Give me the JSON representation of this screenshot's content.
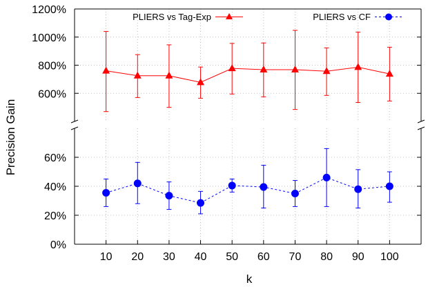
{
  "chart_data": {
    "type": "line",
    "ylabel": "Precision Gain",
    "xlabel": "k",
    "x": [
      10,
      20,
      30,
      40,
      50,
      60,
      70,
      80,
      90,
      100
    ],
    "x_tick_labels": [
      "10",
      "20",
      "30",
      "40",
      "50",
      "60",
      "70",
      "80",
      "90",
      "100"
    ],
    "xlim": [
      0,
      110
    ],
    "broken_y_axis": true,
    "y_segments": [
      {
        "ylim": [
          400,
          1200
        ],
        "ticks": [
          600,
          800,
          1000,
          1200
        ],
        "tick_labels": [
          "600%",
          "800%",
          "1000%",
          "1200%"
        ]
      },
      {
        "ylim": [
          0,
          80
        ],
        "ticks": [
          0,
          20,
          40,
          60
        ],
        "tick_labels": [
          "0%",
          "20%",
          "40%",
          "60%"
        ]
      }
    ],
    "grid": true,
    "legend_placement": "top",
    "series": [
      {
        "name": "PLIERS vs Tag-Exp",
        "color": "#ff0000",
        "marker": "triangle",
        "line_style": "solid",
        "values": [
          760,
          725,
          725,
          678,
          777,
          768,
          768,
          757,
          786,
          738
        ],
        "err_low": [
          470,
          570,
          500,
          565,
          595,
          575,
          485,
          585,
          535,
          545
        ],
        "err_high": [
          1040,
          875,
          945,
          787,
          955,
          958,
          1048,
          923,
          1035,
          928
        ]
      },
      {
        "name": "PLIERS vs CF",
        "color": "#0000ff",
        "marker": "circle",
        "line_style": "dashed",
        "values": [
          35.5,
          42,
          33.5,
          28.5,
          40.5,
          39.5,
          35,
          46,
          38,
          40
        ],
        "err_low": [
          26,
          28,
          24,
          21,
          36,
          25,
          26,
          26,
          25,
          29
        ],
        "err_high": [
          45,
          56.5,
          43,
          36.5,
          45,
          54.5,
          44,
          66,
          51.5,
          50
        ]
      }
    ]
  }
}
